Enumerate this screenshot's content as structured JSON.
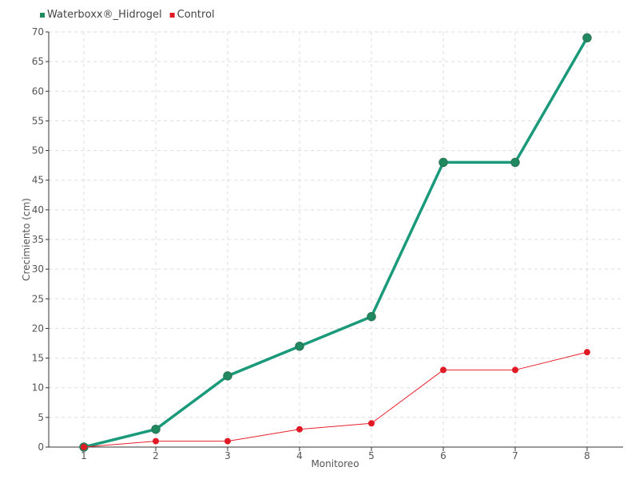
{
  "chart_data": {
    "type": "line",
    "title": "",
    "xlabel": "Monitoreo",
    "ylabel": "Crecimiento (cm)",
    "x": [
      1,
      2,
      3,
      4,
      5,
      6,
      7,
      8
    ],
    "ylim": [
      0,
      70
    ],
    "yticks": [
      0,
      5,
      10,
      15,
      20,
      25,
      30,
      35,
      40,
      45,
      50,
      55,
      60,
      65,
      70
    ],
    "grid": true,
    "legend_position": "top-left",
    "series": [
      {
        "name": "Waterboxx®_Hidrogel",
        "color": "#1a9a7a",
        "marker_fill": "#1f8a60",
        "values": [
          0,
          3,
          12,
          17,
          22,
          48,
          48,
          69
        ]
      },
      {
        "name": "Control",
        "color": "#e8202c",
        "marker_fill": "#e01a24",
        "values": [
          0,
          1,
          1,
          3,
          4,
          13,
          13,
          16
        ]
      }
    ]
  }
}
